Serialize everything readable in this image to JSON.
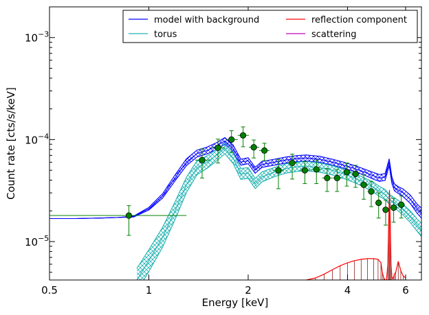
{
  "chart_data": {
    "type": "line",
    "xlabel": "Energy [keV]",
    "ylabel": "Count rate [cts/s/keV]",
    "xscale": "log",
    "yscale": "log",
    "xlim": [
      0.5,
      6.7
    ],
    "ylim": [
      4.2e-06,
      0.002
    ],
    "x_ticks": [
      {
        "value": 0.5,
        "label": "0.5"
      },
      {
        "value": 1,
        "label": "1"
      },
      {
        "value": 2,
        "label": "2"
      },
      {
        "value": 4,
        "label": "4"
      },
      {
        "value": 6,
        "label": "6"
      }
    ],
    "y_ticks": [
      {
        "value": 1e-05,
        "base": "10",
        "exp": "−5"
      },
      {
        "value": 0.0001,
        "base": "10",
        "exp": "−4"
      },
      {
        "value": 0.001,
        "base": "10",
        "exp": "−3"
      }
    ],
    "grid": false,
    "legend": {
      "placement": "top-right",
      "columns": 2,
      "entries": [
        {
          "label": "model with background",
          "color": "#0000ff"
        },
        {
          "label": "reflection component",
          "color": "#ff0000"
        },
        {
          "label": "torus",
          "color": "#20b2b2"
        },
        {
          "label": "scattering",
          "color": "#bf00bf"
        }
      ]
    },
    "series": [
      {
        "name": "model with background",
        "color": "#0000ff",
        "band": true,
        "x": [
          0.5,
          0.6,
          0.7,
          0.8,
          0.9,
          1.0,
          1.1,
          1.2,
          1.3,
          1.4,
          1.5,
          1.6,
          1.7,
          1.8,
          1.9,
          2.0,
          2.1,
          2.2,
          2.4,
          2.6,
          2.8,
          3.0,
          3.3,
          3.6,
          3.9,
          4.2,
          4.5,
          4.8,
          5.0,
          5.2,
          5.35,
          5.45,
          5.55,
          5.7,
          5.9,
          6.2,
          6.5,
          6.7
        ],
        "y": [
          1.68e-05,
          1.68e-05,
          1.7e-05,
          1.72e-05,
          1.76e-05,
          2.1e-05,
          2.8e-05,
          4.2e-05,
          6e-05,
          7.3e-05,
          7.8e-05,
          8.6e-05,
          9.7e-05,
          8.2e-05,
          6e-05,
          6.2e-05,
          5e-05,
          5.7e-05,
          6e-05,
          6.3e-05,
          6.5e-05,
          6.6e-05,
          6.4e-05,
          6e-05,
          5.6e-05,
          5.2e-05,
          4.8e-05,
          4.4e-05,
          4.2e-05,
          4.3e-05,
          6e-05,
          4e-05,
          3.4e-05,
          3.2e-05,
          3e-05,
          2.6e-05,
          2.1e-05,
          1.9e-05
        ],
        "spread": [
          1.0,
          1.0,
          1.0,
          1.0,
          1.01,
          1.03,
          1.05,
          1.07,
          1.08,
          1.08,
          1.08,
          1.08,
          1.08,
          1.08,
          1.07,
          1.07,
          1.07,
          1.07,
          1.07,
          1.07,
          1.07,
          1.07,
          1.07,
          1.07,
          1.07,
          1.07,
          1.07,
          1.08,
          1.08,
          1.08,
          1.08,
          1.08,
          1.08,
          1.08,
          1.09,
          1.1,
          1.11,
          1.12
        ]
      },
      {
        "name": "torus",
        "color": "#20b2b2",
        "band": true,
        "x": [
          0.92,
          1.0,
          1.1,
          1.2,
          1.3,
          1.4,
          1.5,
          1.6,
          1.7,
          1.8,
          1.9,
          2.0,
          2.1,
          2.2,
          2.4,
          2.6,
          2.8,
          3.0,
          3.3,
          3.6,
          3.9,
          4.2,
          4.5,
          4.8,
          5.0,
          5.2,
          5.35,
          5.45,
          5.55,
          5.7,
          5.9,
          6.2,
          6.5,
          6.7
        ],
        "y": [
          4.2e-06,
          6.5e-06,
          1.1e-05,
          2e-05,
          3.6e-05,
          5.3e-05,
          6e-05,
          7e-05,
          8.2e-05,
          6.6e-05,
          4.6e-05,
          4.7e-05,
          3.7e-05,
          4.3e-05,
          4.8e-05,
          5.2e-05,
          5.4e-05,
          5.5e-05,
          5.3e-05,
          5e-05,
          4.6e-05,
          4.2e-05,
          3.8e-05,
          3.4e-05,
          3.1e-05,
          2.9e-05,
          2.6e-05,
          2.5e-05,
          2.4e-05,
          2.25e-05,
          2.05e-05,
          1.75e-05,
          1.45e-05,
          1.3e-05
        ],
        "spread": [
          1.3,
          1.28,
          1.25,
          1.22,
          1.19,
          1.17,
          1.15,
          1.14,
          1.13,
          1.13,
          1.13,
          1.13,
          1.12,
          1.12,
          1.11,
          1.11,
          1.11,
          1.11,
          1.11,
          1.11,
          1.11,
          1.11,
          1.11,
          1.12,
          1.12,
          1.12,
          1.12,
          1.12,
          1.12,
          1.13,
          1.13,
          1.14,
          1.15,
          1.16
        ]
      },
      {
        "name": "reflection component",
        "color": "#ff0000",
        "band": false,
        "x": [
          3.0,
          3.2,
          3.4,
          3.6,
          3.8,
          4.0,
          4.2,
          4.4,
          4.6,
          4.8,
          4.95,
          5.05,
          5.1,
          5.15,
          5.2,
          5.25,
          5.3,
          5.33,
          5.36,
          5.39,
          5.42,
          5.45,
          5.5,
          5.55,
          5.6,
          5.7,
          5.8,
          5.9,
          6.0
        ],
        "y": [
          4.2e-06,
          4.4e-06,
          4.8e-06,
          5.3e-06,
          5.8e-06,
          6.2e-06,
          6.5e-06,
          6.7e-06,
          6.8e-06,
          6.8e-06,
          6.7e-06,
          6.2e-06,
          5e-06,
          4.4e-06,
          4.2e-06,
          4.2e-06,
          6e-06,
          1.5e-05,
          3.2e-05,
          1.6e-05,
          6e-06,
          4.5e-06,
          4.3e-06,
          4.8e-06,
          5e-06,
          6.4e-06,
          5.2e-06,
          4.6e-06,
          4.4e-06
        ]
      },
      {
        "name": "scattering",
        "color": "#bf00bf",
        "band": false,
        "x": [],
        "y": []
      }
    ],
    "data_points": {
      "color": "#008000",
      "x": [
        0.87,
        1.45,
        1.62,
        1.78,
        1.93,
        2.08,
        2.24,
        2.47,
        2.72,
        2.97,
        3.22,
        3.47,
        3.72,
        3.98,
        4.23,
        4.48,
        4.72,
        4.97,
        5.22,
        5.52,
        5.82
      ],
      "xerr_low": [
        0.37,
        0.07,
        0.07,
        0.07,
        0.07,
        0.07,
        0.08,
        0.1,
        0.1,
        0.11,
        0.12,
        0.12,
        0.12,
        0.12,
        0.12,
        0.13,
        0.12,
        0.12,
        0.12,
        0.15,
        0.15
      ],
      "xerr_high": [
        0.43,
        0.08,
        0.08,
        0.08,
        0.08,
        0.08,
        0.08,
        0.1,
        0.1,
        0.11,
        0.12,
        0.12,
        0.12,
        0.12,
        0.12,
        0.13,
        0.12,
        0.12,
        0.12,
        0.15,
        0.15
      ],
      "y": [
        1.8e-05,
        6.3e-05,
        8.3e-05,
        0.0001,
        0.00011,
        8.4e-05,
        7.8e-05,
        5e-05,
        5.9e-05,
        5e-05,
        5.1e-05,
        4.2e-05,
        4.2e-05,
        4.8e-05,
        4.6e-05,
        3.6e-05,
        3.1e-05,
        2.4e-05,
        2.05e-05,
        2.15e-05,
        2.3e-05
      ],
      "yerr_low": [
        6.5e-06,
        2.1e-05,
        2.4e-05,
        2.5e-05,
        2.5e-05,
        1.8e-05,
        1.6e-05,
        1.7e-05,
        1.8e-05,
        1.3e-05,
        1.4e-05,
        1.1e-05,
        1.1e-05,
        1.3e-05,
        1.2e-05,
        1e-05,
        9e-06,
        7e-06,
        6e-06,
        6e-06,
        6e-06
      ],
      "yerr_high": [
        4.5e-06,
        1.8e-05,
        1.8e-05,
        2.2e-05,
        2.3e-05,
        1.5e-05,
        1.4e-05,
        1.4e-05,
        1.3e-05,
        1.1e-05,
        1.2e-05,
        1e-05,
        9e-06,
        1.1e-05,
        1e-05,
        9e-06,
        8e-06,
        6e-06,
        5e-06,
        5e-06,
        5e-06
      ]
    }
  }
}
